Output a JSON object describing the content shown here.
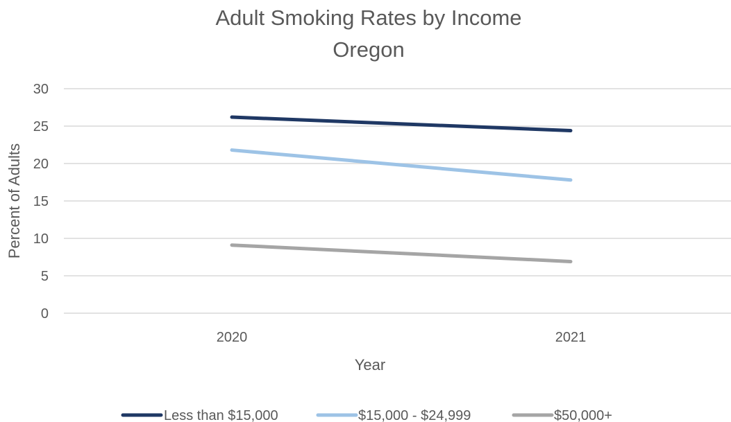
{
  "chart_data": {
    "type": "line",
    "title": "Adult Smoking Rates by Income",
    "subtitle": "Oregon",
    "xlabel": "Year",
    "ylabel": "Percent of Adults",
    "categories": [
      "2020",
      "2021"
    ],
    "ylim": [
      0,
      30
    ],
    "yticks": [
      "0",
      "5",
      "10",
      "15",
      "20",
      "25",
      "30"
    ],
    "grid": true,
    "legend_position": "bottom",
    "series": [
      {
        "name": "Less than $15,000",
        "color": "#1f3864",
        "values": [
          26.2,
          24.4
        ]
      },
      {
        "name": "$15,000 - $24,999",
        "color": "#9dc3e6",
        "values": [
          21.8,
          17.8
        ]
      },
      {
        "name": "$50,000+",
        "color": "#a5a5a5",
        "values": [
          9.1,
          6.9
        ]
      }
    ]
  }
}
